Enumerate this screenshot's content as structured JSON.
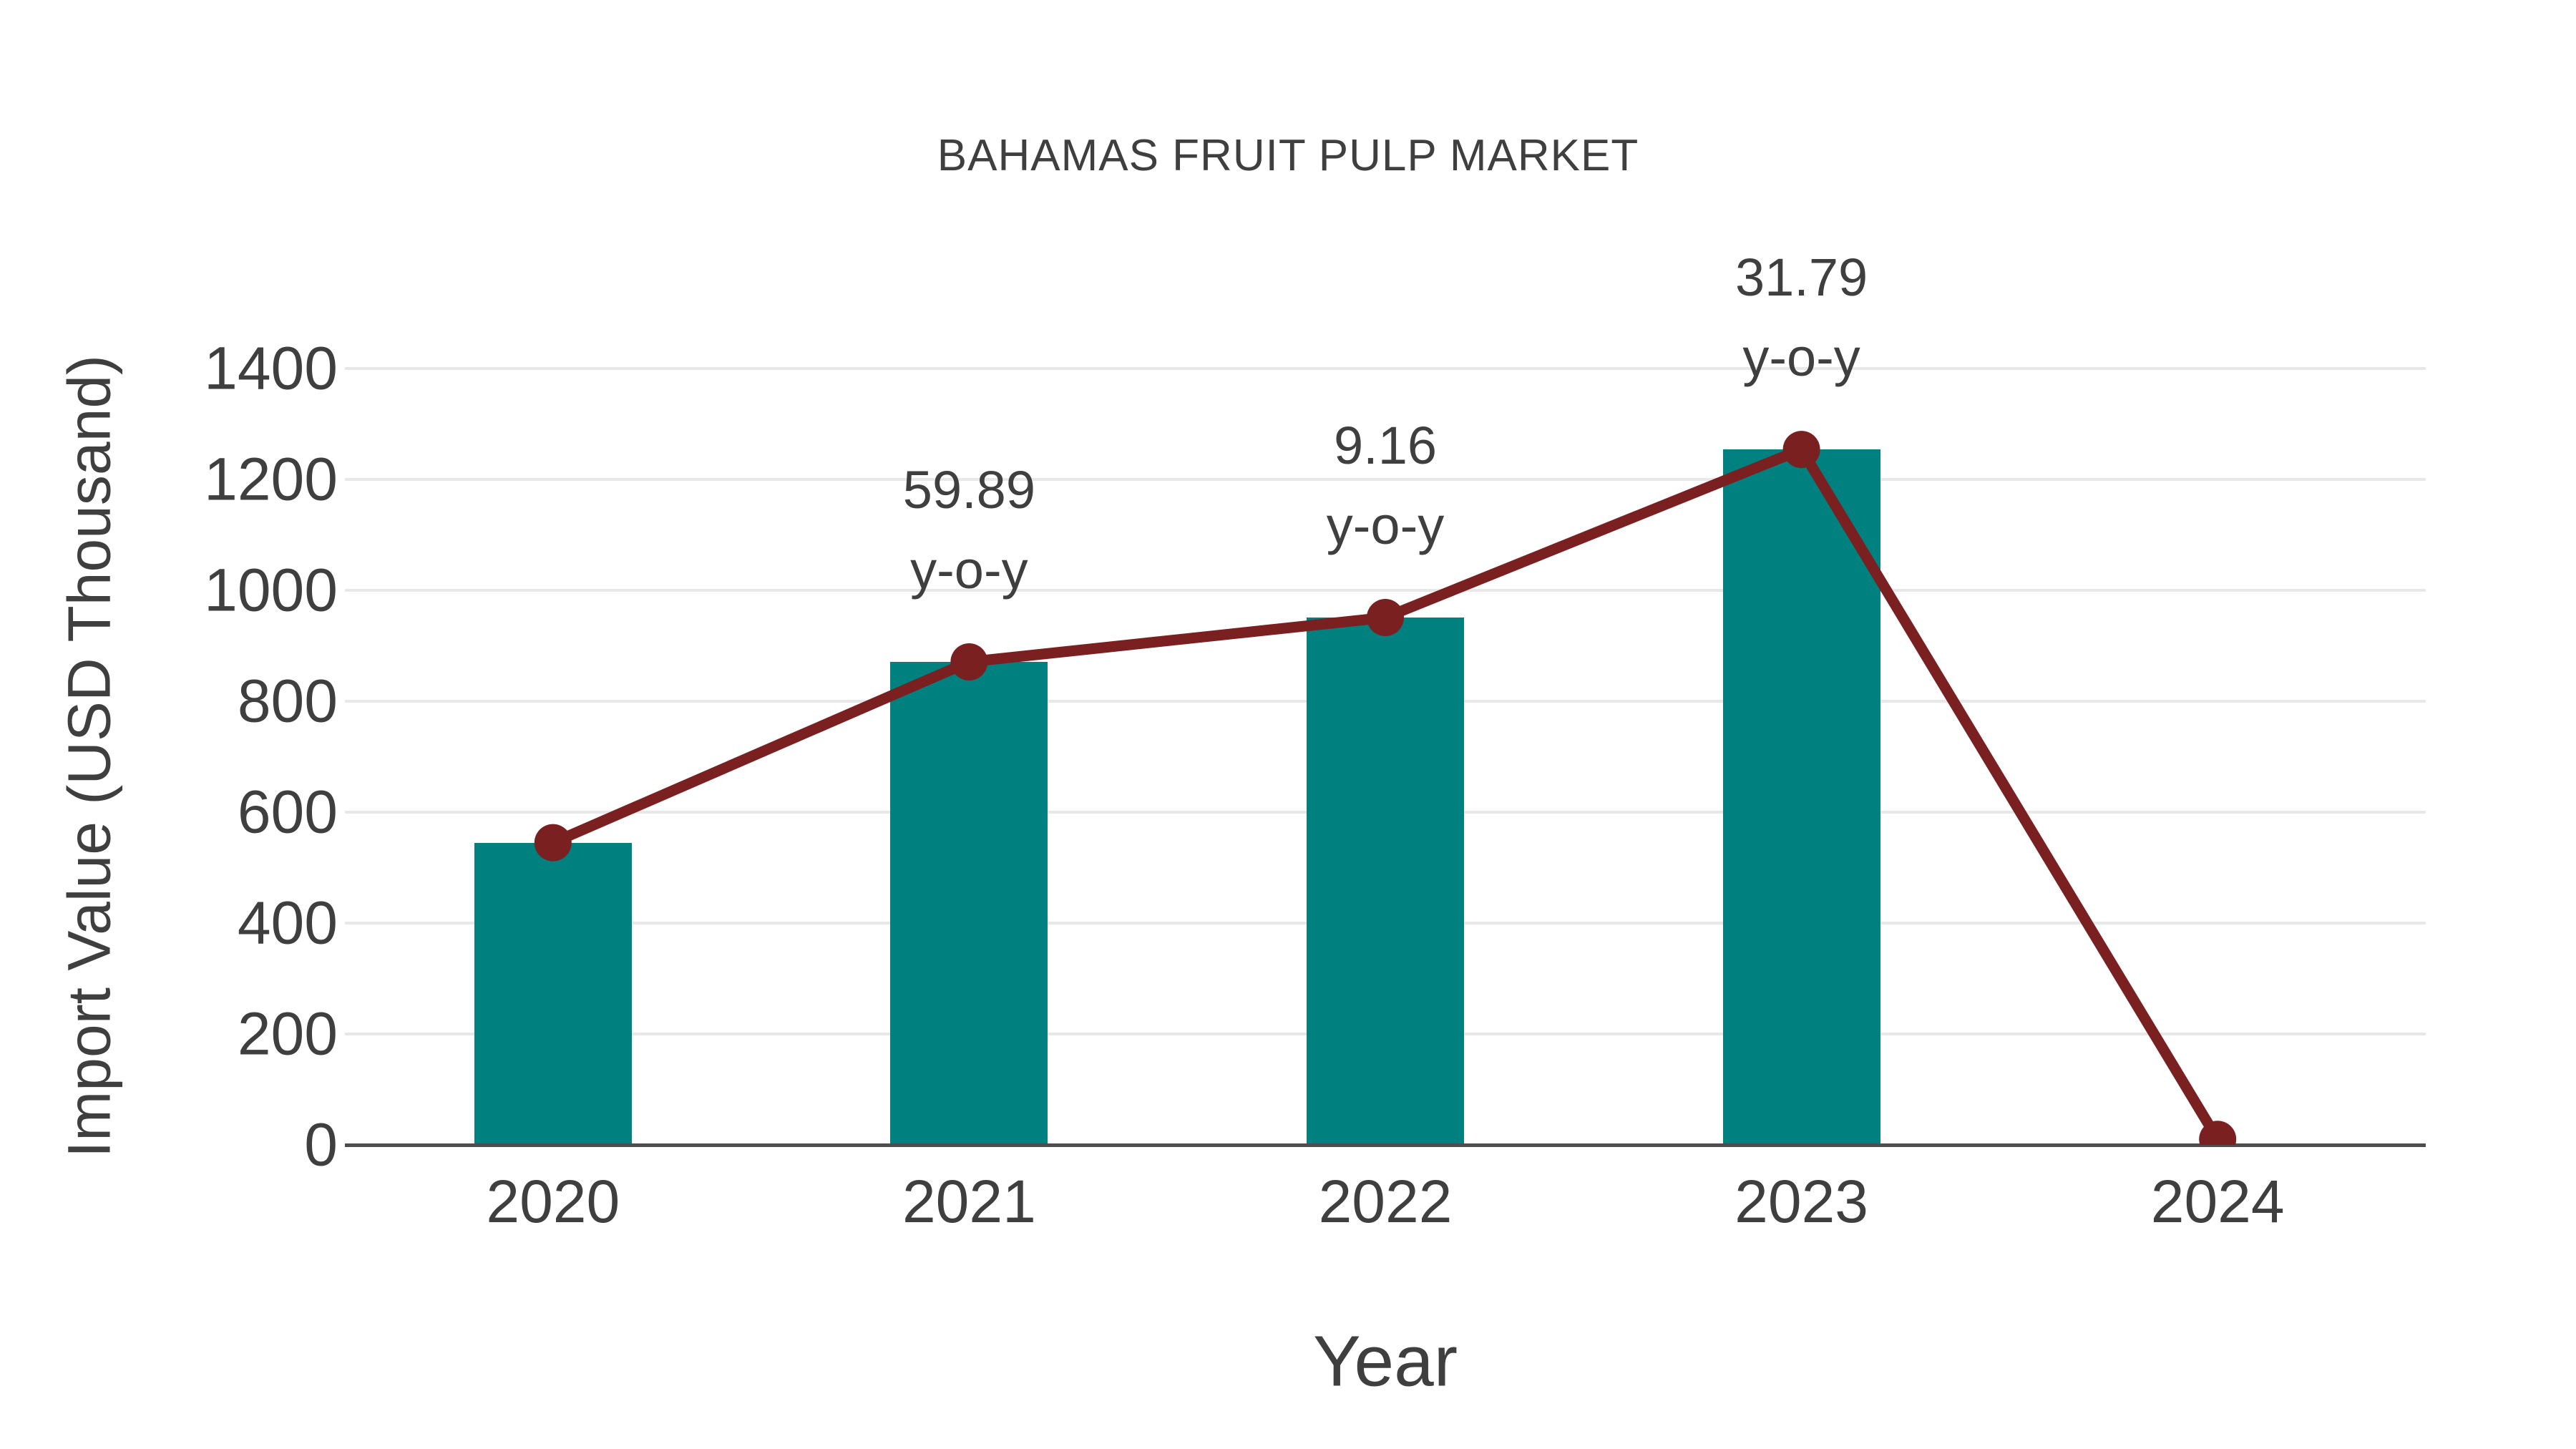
{
  "chart_data": {
    "type": "bar+line",
    "title": "BAHAMAS FRUIT PULP MARKET",
    "xlabel": "Year",
    "ylabel": "Import Value (USD Thousand)",
    "categories": [
      "2020",
      "2021",
      "2022",
      "2023",
      "2024"
    ],
    "series": [
      {
        "name": "import-value-bars",
        "type": "bar",
        "values": [
          545,
          871,
          951,
          1254,
          null
        ]
      },
      {
        "name": "import-value-trend",
        "type": "line",
        "values": [
          545,
          871,
          951,
          1254,
          10
        ]
      }
    ],
    "annotations": [
      {
        "category": "2021",
        "lines": [
          "59.89",
          "y-o-y"
        ]
      },
      {
        "category": "2022",
        "lines": [
          "9.16",
          "y-o-y"
        ]
      },
      {
        "category": "2023",
        "lines": [
          "31.79",
          "y-o-y"
        ]
      }
    ],
    "yticks": [
      0,
      200,
      400,
      600,
      800,
      1000,
      1200,
      1400
    ],
    "ylim": [
      0,
      1400
    ],
    "grid": true,
    "legend_position": "none",
    "colors": {
      "bar": "#00807e",
      "line": "#7a2021",
      "text": "#3f3f3f",
      "gridline": "#e8e8e8",
      "axis": "#4d4d4d",
      "background": "#ffffff"
    }
  }
}
